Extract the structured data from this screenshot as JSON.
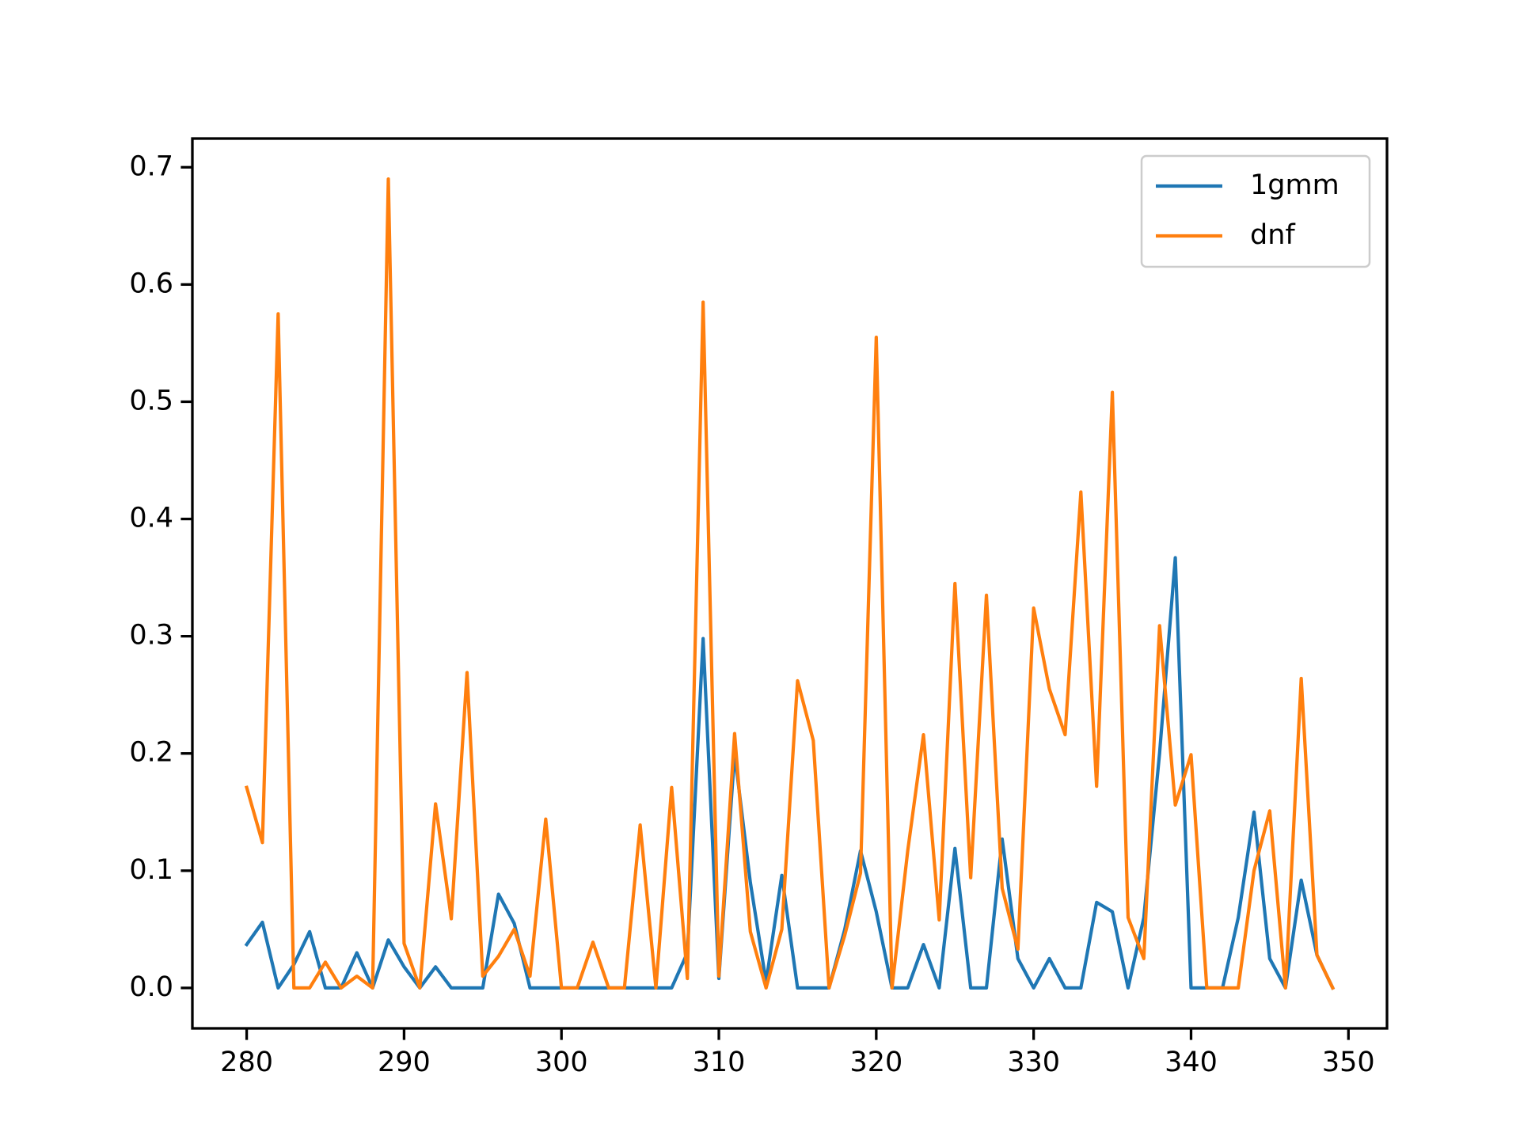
{
  "chart_data": {
    "type": "line",
    "x": [
      280,
      281,
      282,
      283,
      284,
      285,
      286,
      287,
      288,
      289,
      290,
      291,
      292,
      293,
      294,
      295,
      296,
      297,
      298,
      299,
      300,
      301,
      302,
      303,
      304,
      305,
      306,
      307,
      308,
      309,
      310,
      311,
      312,
      313,
      314,
      315,
      316,
      317,
      318,
      319,
      320,
      321,
      322,
      323,
      324,
      325,
      326,
      327,
      328,
      329,
      330,
      331,
      332,
      333,
      334,
      335,
      336,
      337,
      338,
      339,
      340,
      341,
      342,
      343,
      344,
      345,
      346,
      347,
      348,
      349
    ],
    "series": [
      {
        "name": "1gmm",
        "color": "#1f77b4",
        "values": [
          0.037,
          0.056,
          0,
          0.02,
          0.048,
          0,
          0,
          0.03,
          0,
          0.041,
          0.018,
          0,
          0.018,
          0,
          0,
          0,
          0.08,
          0.055,
          0,
          0,
          0,
          0,
          0,
          0,
          0,
          0,
          0,
          0,
          0.03,
          0.298,
          0.008,
          0.2,
          0.09,
          0.005,
          0.096,
          0,
          0,
          0,
          0.05,
          0.117,
          0.065,
          0,
          0,
          0.037,
          0,
          0.119,
          0,
          0,
          0.127,
          0.025,
          0,
          0.025,
          0,
          0,
          0.073,
          0.065,
          0,
          0.06,
          0.2,
          0.367,
          0,
          0,
          0,
          0.06,
          0.15,
          0.025,
          0,
          0.092,
          0.028,
          0
        ]
      },
      {
        "name": "dnf",
        "color": "#ff7f0e",
        "values": [
          0.171,
          0.124,
          0.575,
          0,
          0,
          0.022,
          0,
          0.01,
          0,
          0.69,
          0.038,
          0,
          0.157,
          0.059,
          0.269,
          0.01,
          0.027,
          0.05,
          0.01,
          0.144,
          0,
          0,
          0.039,
          0,
          0,
          0.139,
          0,
          0.171,
          0.008,
          0.585,
          0.01,
          0.217,
          0.048,
          0,
          0.05,
          0.262,
          0.211,
          0,
          0.045,
          0.098,
          0.555,
          0,
          0.117,
          0.216,
          0.058,
          0.345,
          0.094,
          0.335,
          0.085,
          0.033,
          0.324,
          0.255,
          0.216,
          0.423,
          0.172,
          0.508,
          0.06,
          0.025,
          0.309,
          0.156,
          0.199,
          0,
          0,
          0,
          0.1,
          0.151,
          0,
          0.264,
          0.028,
          0
        ]
      }
    ],
    "xlim": [
      276.55,
      352.45
    ],
    "ylim": [
      -0.0345,
      0.7245
    ],
    "xticks": [
      280,
      290,
      300,
      310,
      320,
      330,
      340,
      350
    ],
    "yticks": [
      {
        "value": 0,
        "label": "0.0"
      },
      0.1,
      0.2,
      0.3,
      0.4,
      0.5,
      0.6,
      0.7
    ],
    "legend": "upper right",
    "grid": false
  }
}
